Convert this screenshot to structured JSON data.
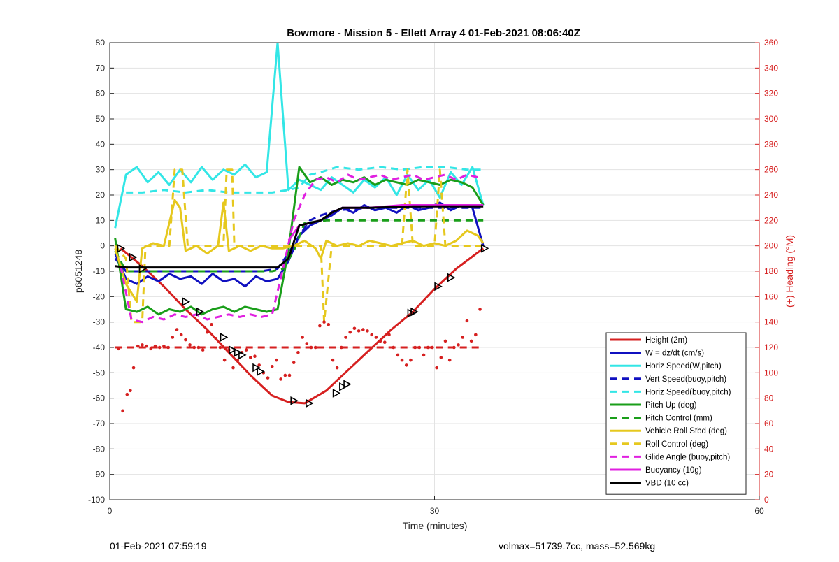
{
  "footer": {
    "left": "01-Feb-2021 07:59:19",
    "right": "volmax=51739.7cc, mass=52.569kg"
  },
  "chart_data": {
    "type": "line",
    "title": "Bowmore - Mission 5 - Ellett Array 4 01-Feb-2021 08:06:40Z",
    "xlabel": "Time (minutes)",
    "ylabel": "p6051248",
    "y2label": "(+) Heading (°M)",
    "xlim": [
      0,
      60
    ],
    "ylim": [
      -100,
      80
    ],
    "y2lim": [
      0,
      360
    ],
    "xticks": [
      "0",
      "30",
      "60"
    ],
    "yticks": [
      "80",
      "70",
      "60",
      "50",
      "40",
      "30",
      "20",
      "10",
      "0",
      "-10",
      "-20",
      "-30",
      "-40",
      "-50",
      "-60",
      "-70",
      "-80",
      "-90",
      "-100"
    ],
    "y2ticks": [
      "360",
      "340",
      "320",
      "300",
      "280",
      "260",
      "240",
      "220",
      "200",
      "180",
      "160",
      "140",
      "120",
      "100",
      "80",
      "60",
      "40",
      "20",
      "0"
    ],
    "grid": true,
    "legend_position": "bottom-right",
    "colors": {
      "red": "#d62020",
      "blue": "#1010c0",
      "cyan": "#33e6e6",
      "green": "#1a9e1a",
      "yellow": "#e6c81e",
      "magenta": "#e020e0",
      "black": "#000000"
    },
    "series": [
      {
        "name": "Height (2m)",
        "color": "#d62020",
        "style": "solid",
        "axis": "left",
        "x": [
          1,
          3,
          5,
          7,
          9,
          11,
          13,
          15,
          16.5,
          18,
          20,
          22,
          24,
          26,
          28,
          30,
          32,
          34.5
        ],
        "y": [
          -1,
          -8,
          -16,
          -25,
          -33,
          -42,
          -51,
          -59,
          -61.5,
          -62,
          -57,
          -49,
          -41,
          -33,
          -26,
          -17,
          -9,
          -1
        ]
      },
      {
        "name": "W = dz/dt (cm/s)",
        "color": "#1010c0",
        "style": "solid",
        "axis": "left",
        "x": [
          0.5,
          1.5,
          2.5,
          3.5,
          4.5,
          5.5,
          6.5,
          7.5,
          8.5,
          9.5,
          10.5,
          11.5,
          12.5,
          13.5,
          14.5,
          15.5,
          16.5,
          17.5,
          18.5,
          19.5,
          20.5,
          21.5,
          22.5,
          23.5,
          24.5,
          25.5,
          26.5,
          27.5,
          28.5,
          29.5,
          30.5,
          31.5,
          32.5,
          33.5,
          34.5
        ],
        "y": [
          -3,
          -13,
          -15,
          -12,
          -14,
          -11,
          -13,
          -12,
          -15,
          -11,
          -14,
          -13,
          -16,
          -12,
          -14,
          -13,
          -6,
          4,
          8,
          10,
          12,
          15,
          13,
          16,
          14,
          15,
          13,
          16,
          14,
          15,
          17,
          14,
          16,
          15,
          0
        ]
      },
      {
        "name": "Horiz Speed(W,pitch)",
        "color": "#33e6e6",
        "style": "solid",
        "axis": "left",
        "x": [
          0.5,
          1.5,
          2.5,
          3.5,
          4.5,
          5.5,
          6.5,
          7.5,
          8.5,
          9.5,
          10.5,
          11.5,
          12.5,
          13.5,
          14.5,
          15.5,
          16.5,
          17.5,
          18.5,
          19.5,
          20.5,
          21.5,
          22.5,
          23.5,
          24.5,
          25.5,
          26.5,
          27.5,
          28.5,
          29.5,
          30.5,
          31.5,
          32.5,
          33.5,
          34.5
        ],
        "y": [
          7,
          28,
          31,
          25,
          29,
          24,
          30,
          25,
          31,
          26,
          30,
          28,
          32,
          27,
          29,
          80,
          22,
          26,
          24,
          22,
          27,
          24,
          21,
          26,
          23,
          27,
          20,
          28,
          22,
          26,
          19,
          29,
          24,
          31,
          16
        ]
      },
      {
        "name": "Vert Speed(buoy,pitch)",
        "color": "#1010c0",
        "style": "dashed",
        "axis": "left",
        "x": [
          0.5,
          1.5,
          3,
          5,
          8,
          11,
          14,
          15.5,
          16.5,
          17.5,
          18.5,
          19.5,
          21,
          24,
          28,
          31,
          34.5
        ],
        "y": [
          -5,
          -10,
          -10,
          -10,
          -10,
          -10,
          -10,
          -9,
          -3,
          4,
          10,
          12,
          14,
          15,
          15,
          15,
          15
        ]
      },
      {
        "name": "Horiz Speed(buoy,pitch)",
        "color": "#33e6e6",
        "style": "dashed",
        "axis": "left",
        "x": [
          1.5,
          3,
          5,
          7,
          9,
          11,
          13,
          15,
          16.5,
          17.5,
          18.5,
          19.5,
          21,
          23,
          25,
          27,
          29,
          31,
          33,
          34.5
        ],
        "y": [
          21,
          21,
          22,
          21,
          22,
          21,
          21,
          21,
          22,
          23,
          28,
          29,
          31,
          30,
          31,
          30,
          31,
          31,
          30,
          30
        ]
      },
      {
        "name": "Pitch Up (deg)",
        "color": "#1a9e1a",
        "style": "solid",
        "axis": "left",
        "x": [
          0.5,
          1.5,
          2.5,
          3.5,
          4.5,
          5.5,
          6.5,
          7.5,
          8.5,
          9.5,
          10.5,
          11.5,
          12.5,
          13.5,
          14.5,
          15.5,
          16.5,
          17.5,
          18.5,
          19.5,
          20.5,
          21.5,
          22.5,
          23.5,
          24.5,
          25.5,
          26.5,
          27.5,
          28.5,
          29.5,
          30.5,
          31.5,
          32.5,
          33.5,
          34.5
        ],
        "y": [
          3,
          -25,
          -26,
          -24,
          -27,
          -25,
          -26,
          -24,
          -27,
          -25,
          -24,
          -26,
          -24,
          -25,
          -26,
          -25,
          -2,
          31,
          25,
          27,
          24,
          26,
          25,
          27,
          24,
          26,
          25,
          24,
          26,
          25,
          24,
          26,
          25,
          23,
          16
        ]
      },
      {
        "name": "Pitch Control (mm)",
        "color": "#1a9e1a",
        "style": "dashed",
        "axis": "left",
        "x": [
          0.5,
          1.5,
          5,
          10,
          15,
          16,
          17,
          18,
          20,
          25,
          30,
          34.5
        ],
        "y": [
          -2,
          -10,
          -10,
          -10,
          -10,
          -9,
          -2,
          9,
          10,
          10,
          10,
          10
        ]
      },
      {
        "name": "Vehicle Roll Stbd (deg)",
        "color": "#e6c81e",
        "style": "solid",
        "axis": "left",
        "x": [
          0.5,
          1.5,
          2.5,
          3,
          4,
          5,
          6,
          6.5,
          7,
          8,
          9,
          10,
          10.5,
          11,
          12,
          13,
          14,
          15,
          16,
          17,
          18,
          19,
          19.5,
          20,
          21,
          22,
          23,
          24,
          25,
          26,
          27,
          28,
          29,
          30,
          31,
          32,
          33,
          34,
          34.5
        ],
        "y": [
          -1,
          -15,
          -22,
          -1,
          1,
          0,
          18,
          15,
          -2,
          0,
          -3,
          0,
          17,
          -2,
          0,
          -2,
          0,
          -1,
          -1,
          0,
          2,
          -1,
          -5,
          2,
          0,
          1,
          0,
          2,
          1,
          0,
          1,
          2,
          0,
          1,
          0,
          2,
          6,
          4,
          1
        ]
      },
      {
        "name": "Roll Control (deg)",
        "color": "#e6c81e",
        "style": "dashed",
        "axis": "left",
        "x": [
          0.5,
          1.5,
          2,
          3,
          3.3,
          5.5,
          6,
          6.7,
          7.2,
          10.5,
          10.8,
          11.3,
          11.5,
          16,
          18.5,
          19.5,
          19.8,
          20.5,
          27,
          27.5,
          28,
          30,
          30.5,
          31,
          34.5
        ],
        "y": [
          0,
          -5,
          -30,
          -30,
          0,
          0,
          30,
          30,
          0,
          0,
          30,
          30,
          0,
          0,
          0,
          0,
          -30,
          0,
          0,
          30,
          0,
          0,
          30,
          0,
          0
        ]
      },
      {
        "name": "Glide Angle (buoy,pitch)",
        "color": "#e020e0",
        "style": "dashed",
        "axis": "left",
        "x": [
          1,
          2,
          3,
          4,
          5,
          6,
          7,
          8,
          9,
          10,
          11,
          12,
          13,
          14,
          15,
          16,
          17,
          18,
          19,
          20,
          21,
          22,
          23,
          24,
          25,
          26,
          27,
          28,
          29,
          30,
          31,
          32,
          33,
          34
        ],
        "y": [
          -8,
          -29,
          -30,
          -28,
          -29,
          -27,
          -28,
          -27,
          -29,
          -28,
          -27,
          -28,
          -27,
          -28,
          -27,
          -9,
          10,
          20,
          26,
          27,
          25,
          28,
          26,
          27,
          28,
          26,
          27,
          28,
          26,
          27,
          28,
          26,
          28,
          27
        ]
      },
      {
        "name": "Buoyancy (10g)",
        "color": "#e020e0",
        "style": "solid",
        "axis": "left",
        "x": [
          16.5,
          17.5,
          18.5,
          19.5,
          20.5,
          21.5,
          24,
          27,
          30,
          34.5
        ],
        "y": [
          2,
          8,
          9,
          10,
          13,
          15,
          15,
          16,
          16,
          16
        ]
      },
      {
        "name": "VBD (10 cc)",
        "color": "#000000",
        "style": "solid",
        "axis": "left",
        "x": [
          0.5,
          1.5,
          5,
          10,
          15.5,
          16.5,
          17.5,
          18.5,
          19.5,
          20.5,
          21.5,
          24,
          28,
          34.5
        ],
        "y": [
          -8,
          -8.5,
          -8.5,
          -8.5,
          -8.5,
          -5,
          8,
          9,
          10,
          13,
          15,
          15,
          15.5,
          15.5
        ]
      },
      {
        "name": "",
        "color": "#d62020",
        "style": "dashed",
        "axis": "right",
        "x": [
          0.5,
          34.5
        ],
        "y": [
          120,
          120
        ]
      },
      {
        "name": "",
        "color": "#d62020",
        "style": "dots",
        "axis": "right",
        "x": [
          0.8,
          1.2,
          1.6,
          1.9,
          2.2,
          2.6,
          3.0,
          3.4,
          3.8,
          4.2,
          4.6,
          5.0,
          5.4,
          5.8,
          6.2,
          6.6,
          7.0,
          7.4,
          7.8,
          8.2,
          8.6,
          9.0,
          9.4,
          9.8,
          10.2,
          10.6,
          11.0,
          11.4,
          11.8,
          12.2,
          12.6,
          13.0,
          13.4,
          13.8,
          14.2,
          14.6,
          15.0,
          15.4,
          15.8,
          16.2,
          16.6,
          17.0,
          17.4,
          17.8,
          18.2,
          18.6,
          19.0,
          19.4,
          19.8,
          20.2,
          20.6,
          21.0,
          21.4,
          21.8,
          22.2,
          22.6,
          23.0,
          23.4,
          23.8,
          24.2,
          24.6,
          25.0,
          25.4,
          25.8,
          26.2,
          26.6,
          27.0,
          27.4,
          27.8,
          28.2,
          28.6,
          29.0,
          29.4,
          29.8,
          30.2,
          30.6,
          31.0,
          31.4,
          31.8,
          32.2,
          32.6,
          33.0,
          33.4,
          33.8,
          34.2
        ],
        "y": [
          119,
          70,
          83,
          86,
          104,
          121,
          122,
          121,
          119,
          121,
          120,
          121,
          120,
          128,
          134,
          130,
          126,
          122,
          120,
          120,
          118,
          132,
          138,
          127,
          120,
          110,
          118,
          104,
          110,
          116,
          118,
          112,
          113,
          106,
          100,
          96,
          105,
          110,
          95,
          98,
          98,
          108,
          116,
          128,
          123,
          120,
          120,
          137,
          140,
          138,
          110,
          104,
          120,
          128,
          132,
          135,
          133,
          134,
          133,
          130,
          128,
          125,
          124,
          130,
          120,
          114,
          110,
          106,
          110,
          120,
          120,
          114,
          120,
          120,
          104,
          112,
          125,
          110,
          120,
          122,
          128,
          141,
          125,
          130,
          150
        ]
      }
    ],
    "markers": {
      "symbol": "triangle-right",
      "color": "#000000",
      "x": [
        1,
        2.1,
        3,
        7,
        8.3,
        10.5,
        11.3,
        11.8,
        12.2,
        13.5,
        13.9,
        17,
        18.4,
        20.9,
        21.5,
        21.9,
        27.8,
        28.1,
        30.3,
        31.5,
        34.6
      ],
      "y": [
        -1,
        -4.5,
        -9,
        -22,
        -26,
        -36,
        -41,
        -42,
        -43,
        -48,
        -49.5,
        -61,
        -62,
        -58,
        -55.5,
        -54.5,
        -26.5,
        -26,
        -16,
        -12.5,
        -1
      ]
    }
  }
}
